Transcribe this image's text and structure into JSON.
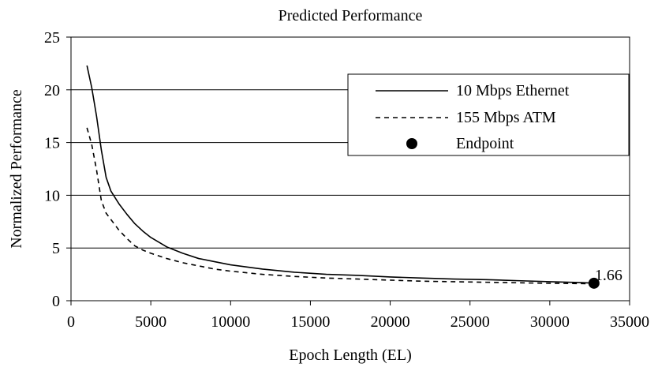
{
  "chart_data": {
    "type": "line",
    "title": "Predicted Performance",
    "xlabel": "Epoch Length (EL)",
    "ylabel": "Normalized Performance",
    "xlim": [
      0,
      35000
    ],
    "ylim": [
      0,
      25
    ],
    "x_ticks": [
      0,
      5000,
      10000,
      15000,
      20000,
      25000,
      30000,
      35000
    ],
    "y_ticks": [
      0,
      5,
      10,
      15,
      20,
      25
    ],
    "grid": {
      "horizontal": true,
      "vertical": false
    },
    "legend_position": "top-right",
    "series": [
      {
        "name": "10 Mbps Ethernet",
        "style": "solid",
        "color": "#000000",
        "points": [
          [
            1000,
            22.3
          ],
          [
            1300,
            20.2
          ],
          [
            1600,
            17.5
          ],
          [
            1900,
            14.3
          ],
          [
            2200,
            11.7
          ],
          [
            2500,
            10.4
          ],
          [
            3000,
            9.2
          ],
          [
            3500,
            8.2
          ],
          [
            4000,
            7.3
          ],
          [
            4500,
            6.6
          ],
          [
            5000,
            6.0
          ],
          [
            6000,
            5.1
          ],
          [
            7000,
            4.5
          ],
          [
            8000,
            4.0
          ],
          [
            9000,
            3.7
          ],
          [
            10000,
            3.4
          ],
          [
            12000,
            3.0
          ],
          [
            14000,
            2.7
          ],
          [
            16000,
            2.5
          ],
          [
            18000,
            2.4
          ],
          [
            20000,
            2.25
          ],
          [
            22000,
            2.15
          ],
          [
            24000,
            2.05
          ],
          [
            26000,
            2.0
          ],
          [
            28000,
            1.9
          ],
          [
            30000,
            1.8
          ],
          [
            32000,
            1.72
          ],
          [
            32768,
            1.66
          ]
        ]
      },
      {
        "name": "155 Mbps ATM",
        "style": "dashed",
        "color": "#000000",
        "points": [
          [
            1000,
            16.4
          ],
          [
            1300,
            14.8
          ],
          [
            1600,
            12.4
          ],
          [
            1900,
            9.5
          ],
          [
            2200,
            8.3
          ],
          [
            2500,
            7.7
          ],
          [
            3000,
            6.7
          ],
          [
            3500,
            5.9
          ],
          [
            4000,
            5.2
          ],
          [
            4500,
            4.8
          ],
          [
            5000,
            4.5
          ],
          [
            6000,
            4.0
          ],
          [
            7000,
            3.6
          ],
          [
            8000,
            3.3
          ],
          [
            9000,
            3.0
          ],
          [
            10000,
            2.8
          ],
          [
            12000,
            2.5
          ],
          [
            14000,
            2.3
          ],
          [
            16000,
            2.15
          ],
          [
            18000,
            2.05
          ],
          [
            20000,
            1.95
          ],
          [
            22000,
            1.85
          ],
          [
            24000,
            1.8
          ],
          [
            26000,
            1.75
          ],
          [
            28000,
            1.7
          ],
          [
            30000,
            1.65
          ],
          [
            32000,
            1.62
          ],
          [
            32768,
            1.6
          ]
        ]
      }
    ],
    "endpoint": {
      "name": "Endpoint",
      "x": 32768,
      "y": 1.66,
      "label": "1.66"
    }
  }
}
